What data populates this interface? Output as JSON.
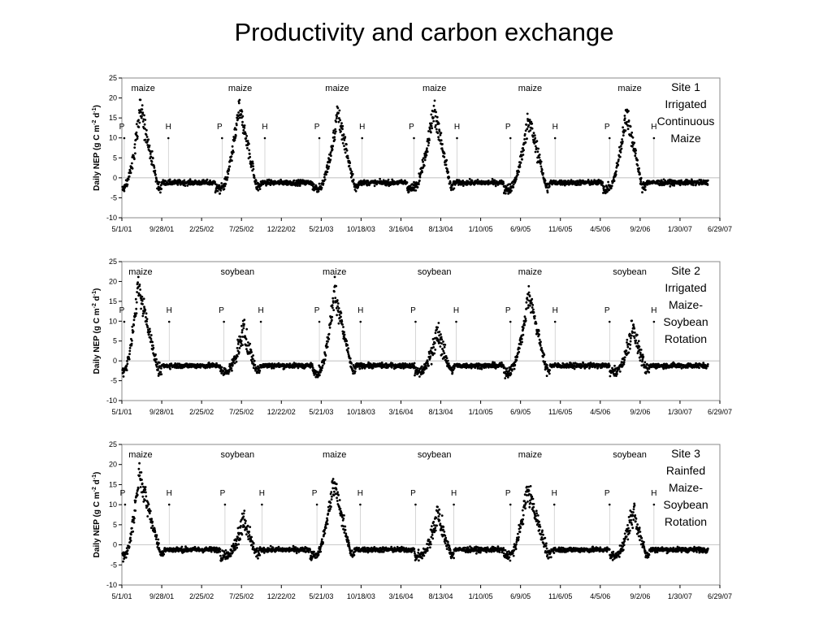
{
  "title": "Productivity and carbon exchange",
  "chart_data": [
    {
      "type": "scatter",
      "title": "",
      "ylabel": "Daily NEP (g C m-2 d-1)",
      "ylim": [
        -10,
        25
      ],
      "yticks": [
        -10,
        -5,
        0,
        5,
        10,
        15,
        20,
        25
      ],
      "xlim": [
        "2001-05-01",
        "2007-06-29"
      ],
      "xtick_labels": [
        "5/1/01",
        "9/28/01",
        "2/25/02",
        "7/25/02",
        "12/22/02",
        "5/21/03",
        "10/18/03",
        "3/16/04",
        "8/13/04",
        "1/10/05",
        "6/9/05",
        "11/6/05",
        "4/5/06",
        "9/2/06",
        "1/30/07",
        "6/29/07"
      ],
      "site_label": [
        "Site 1",
        "Irrigated",
        "Continuous",
        "Maize"
      ],
      "crops": [
        {
          "label": "maize",
          "date": "2001-07-20"
        },
        {
          "label": "maize",
          "date": "2002-07-20"
        },
        {
          "label": "maize",
          "date": "2003-07-20"
        },
        {
          "label": "maize",
          "date": "2004-07-20"
        },
        {
          "label": "maize",
          "date": "2005-07-15"
        },
        {
          "label": "maize",
          "date": "2006-07-25"
        }
      ],
      "markers": [
        {
          "label": "P",
          "date": "2001-05-10"
        },
        {
          "label": "H",
          "date": "2001-10-23"
        },
        {
          "label": "P",
          "date": "2002-05-13"
        },
        {
          "label": "H",
          "date": "2002-10-21"
        },
        {
          "label": "P",
          "date": "2003-05-14"
        },
        {
          "label": "H",
          "date": "2003-10-22"
        },
        {
          "label": "P",
          "date": "2004-05-04"
        },
        {
          "label": "H",
          "date": "2004-10-13"
        },
        {
          "label": "P",
          "date": "2005-05-02"
        },
        {
          "label": "H",
          "date": "2005-10-17"
        },
        {
          "label": "P",
          "date": "2006-05-10"
        },
        {
          "label": "H",
          "date": "2006-10-24"
        }
      ],
      "seasons": [
        {
          "crop": "maize",
          "start": "2001-05-10",
          "peak": "2001-07-10",
          "end": "2001-09-15",
          "peak_nep": 17.5
        },
        {
          "crop": "maize",
          "start": "2002-05-13",
          "peak": "2002-07-16",
          "end": "2002-09-22",
          "peak_nep": 17.5
        },
        {
          "crop": "maize",
          "start": "2003-05-14",
          "peak": "2003-07-23",
          "end": "2003-09-25",
          "peak_nep": 16
        },
        {
          "crop": "maize",
          "start": "2004-05-04",
          "peak": "2004-07-17",
          "end": "2004-09-20",
          "peak_nep": 17.5
        },
        {
          "crop": "maize",
          "start": "2005-05-02",
          "peak": "2005-07-10",
          "end": "2005-09-15",
          "peak_nep": 15
        },
        {
          "crop": "maize",
          "start": "2006-05-10",
          "peak": "2006-07-12",
          "end": "2006-09-10",
          "peak_nep": 16.5
        }
      ],
      "dormant_nep": -1.2
    },
    {
      "type": "scatter",
      "title": "",
      "ylabel": "Daily NEP (g C m-2 d-1)",
      "ylim": [
        -10,
        25
      ],
      "yticks": [
        -10,
        -5,
        0,
        5,
        10,
        15,
        20,
        25
      ],
      "xlim": [
        "2001-05-01",
        "2007-06-29"
      ],
      "xtick_labels": [
        "5/1/01",
        "9/28/01",
        "2/25/02",
        "7/25/02",
        "12/22/02",
        "5/21/03",
        "10/18/03",
        "3/16/04",
        "8/13/04",
        "1/10/05",
        "6/9/05",
        "11/6/05",
        "4/5/06",
        "9/2/06",
        "1/30/07",
        "6/29/07"
      ],
      "site_label": [
        "Site 2",
        "Irrigated",
        "Maize-",
        "Soybean",
        "Rotation"
      ],
      "crops": [
        {
          "label": "maize",
          "date": "2001-07-10"
        },
        {
          "label": "soybean",
          "date": "2002-07-10"
        },
        {
          "label": "maize",
          "date": "2003-07-10"
        },
        {
          "label": "soybean",
          "date": "2004-07-20"
        },
        {
          "label": "maize",
          "date": "2005-07-15"
        },
        {
          "label": "soybean",
          "date": "2006-07-25"
        }
      ],
      "markers": [
        {
          "label": "P",
          "date": "2001-05-10"
        },
        {
          "label": "H",
          "date": "2001-10-26"
        },
        {
          "label": "P",
          "date": "2002-05-20"
        },
        {
          "label": "H",
          "date": "2002-10-06"
        },
        {
          "label": "P",
          "date": "2003-05-14"
        },
        {
          "label": "H",
          "date": "2003-10-16"
        },
        {
          "label": "P",
          "date": "2004-05-10"
        },
        {
          "label": "H",
          "date": "2004-10-10"
        },
        {
          "label": "P",
          "date": "2005-05-02"
        },
        {
          "label": "H",
          "date": "2005-10-17"
        },
        {
          "label": "P",
          "date": "2006-05-10"
        },
        {
          "label": "H",
          "date": "2006-10-24"
        }
      ],
      "seasons": [
        {
          "crop": "maize",
          "start": "2001-05-10",
          "peak": "2001-07-01",
          "end": "2001-09-15",
          "peak_nep": 19
        },
        {
          "crop": "soybean",
          "start": "2002-06-01",
          "peak": "2002-08-01",
          "end": "2002-09-20",
          "peak_nep": 7.5
        },
        {
          "crop": "maize",
          "start": "2003-05-14",
          "peak": "2003-07-10",
          "end": "2003-09-15",
          "peak_nep": 17.5
        },
        {
          "crop": "soybean",
          "start": "2004-06-01",
          "peak": "2004-08-01",
          "end": "2004-09-20",
          "peak_nep": 7
        },
        {
          "crop": "maize",
          "start": "2005-05-02",
          "peak": "2005-07-10",
          "end": "2005-09-15",
          "peak_nep": 17
        },
        {
          "crop": "soybean",
          "start": "2006-06-05",
          "peak": "2006-08-05",
          "end": "2006-09-25",
          "peak_nep": 8
        }
      ],
      "dormant_nep": -1.2
    },
    {
      "type": "scatter",
      "title": "",
      "ylabel": "Daily NEP (g C m-2 d-1)",
      "ylim": [
        -10,
        25
      ],
      "yticks": [
        -10,
        -5,
        0,
        5,
        10,
        15,
        20,
        25
      ],
      "xlim": [
        "2001-05-01",
        "2007-06-29"
      ],
      "xtick_labels": [
        "5/1/01",
        "9/28/01",
        "2/25/02",
        "7/25/02",
        "12/22/02",
        "5/21/03",
        "10/18/03",
        "3/16/04",
        "8/13/04",
        "1/10/05",
        "6/9/05",
        "11/6/05",
        "4/5/06",
        "9/2/06",
        "1/30/07",
        "6/29/07"
      ],
      "site_label": [
        "Site 3",
        "Rainfed",
        "Maize-",
        "Soybean",
        "Rotation"
      ],
      "crops": [
        {
          "label": "maize",
          "date": "2001-07-10"
        },
        {
          "label": "soybean",
          "date": "2002-07-10"
        },
        {
          "label": "maize",
          "date": "2003-07-10"
        },
        {
          "label": "soybean",
          "date": "2004-07-20"
        },
        {
          "label": "maize",
          "date": "2005-07-15"
        },
        {
          "label": "soybean",
          "date": "2006-07-25"
        }
      ],
      "markers": [
        {
          "label": "P",
          "date": "2001-05-13"
        },
        {
          "label": "H",
          "date": "2001-10-26"
        },
        {
          "label": "P",
          "date": "2002-05-24"
        },
        {
          "label": "H",
          "date": "2002-10-10"
        },
        {
          "label": "P",
          "date": "2003-05-05"
        },
        {
          "label": "H",
          "date": "2003-10-15"
        },
        {
          "label": "P",
          "date": "2004-05-10"
        },
        {
          "label": "H",
          "date": "2004-10-01"
        },
        {
          "label": "P",
          "date": "2005-05-02"
        },
        {
          "label": "H",
          "date": "2005-10-14"
        },
        {
          "label": "P",
          "date": "2006-05-10"
        },
        {
          "label": "H",
          "date": "2006-10-24"
        }
      ],
      "seasons": [
        {
          "crop": "maize",
          "start": "2001-05-13",
          "peak": "2001-07-05",
          "end": "2001-09-25",
          "peak_nep": 17.5
        },
        {
          "crop": "soybean",
          "start": "2002-06-01",
          "peak": "2002-08-01",
          "end": "2002-09-20",
          "peak_nep": 6
        },
        {
          "crop": "maize",
          "start": "2003-05-05",
          "peak": "2003-07-05",
          "end": "2003-09-10",
          "peak_nep": 16
        },
        {
          "crop": "soybean",
          "start": "2004-06-01",
          "peak": "2004-08-01",
          "end": "2004-09-20",
          "peak_nep": 8
        },
        {
          "crop": "maize",
          "start": "2005-05-02",
          "peak": "2005-07-05",
          "end": "2005-09-20",
          "peak_nep": 14
        },
        {
          "crop": "soybean",
          "start": "2006-06-05",
          "peak": "2006-08-05",
          "end": "2006-09-25",
          "peak_nep": 8.5
        }
      ],
      "dormant_nep": -1.2
    }
  ]
}
